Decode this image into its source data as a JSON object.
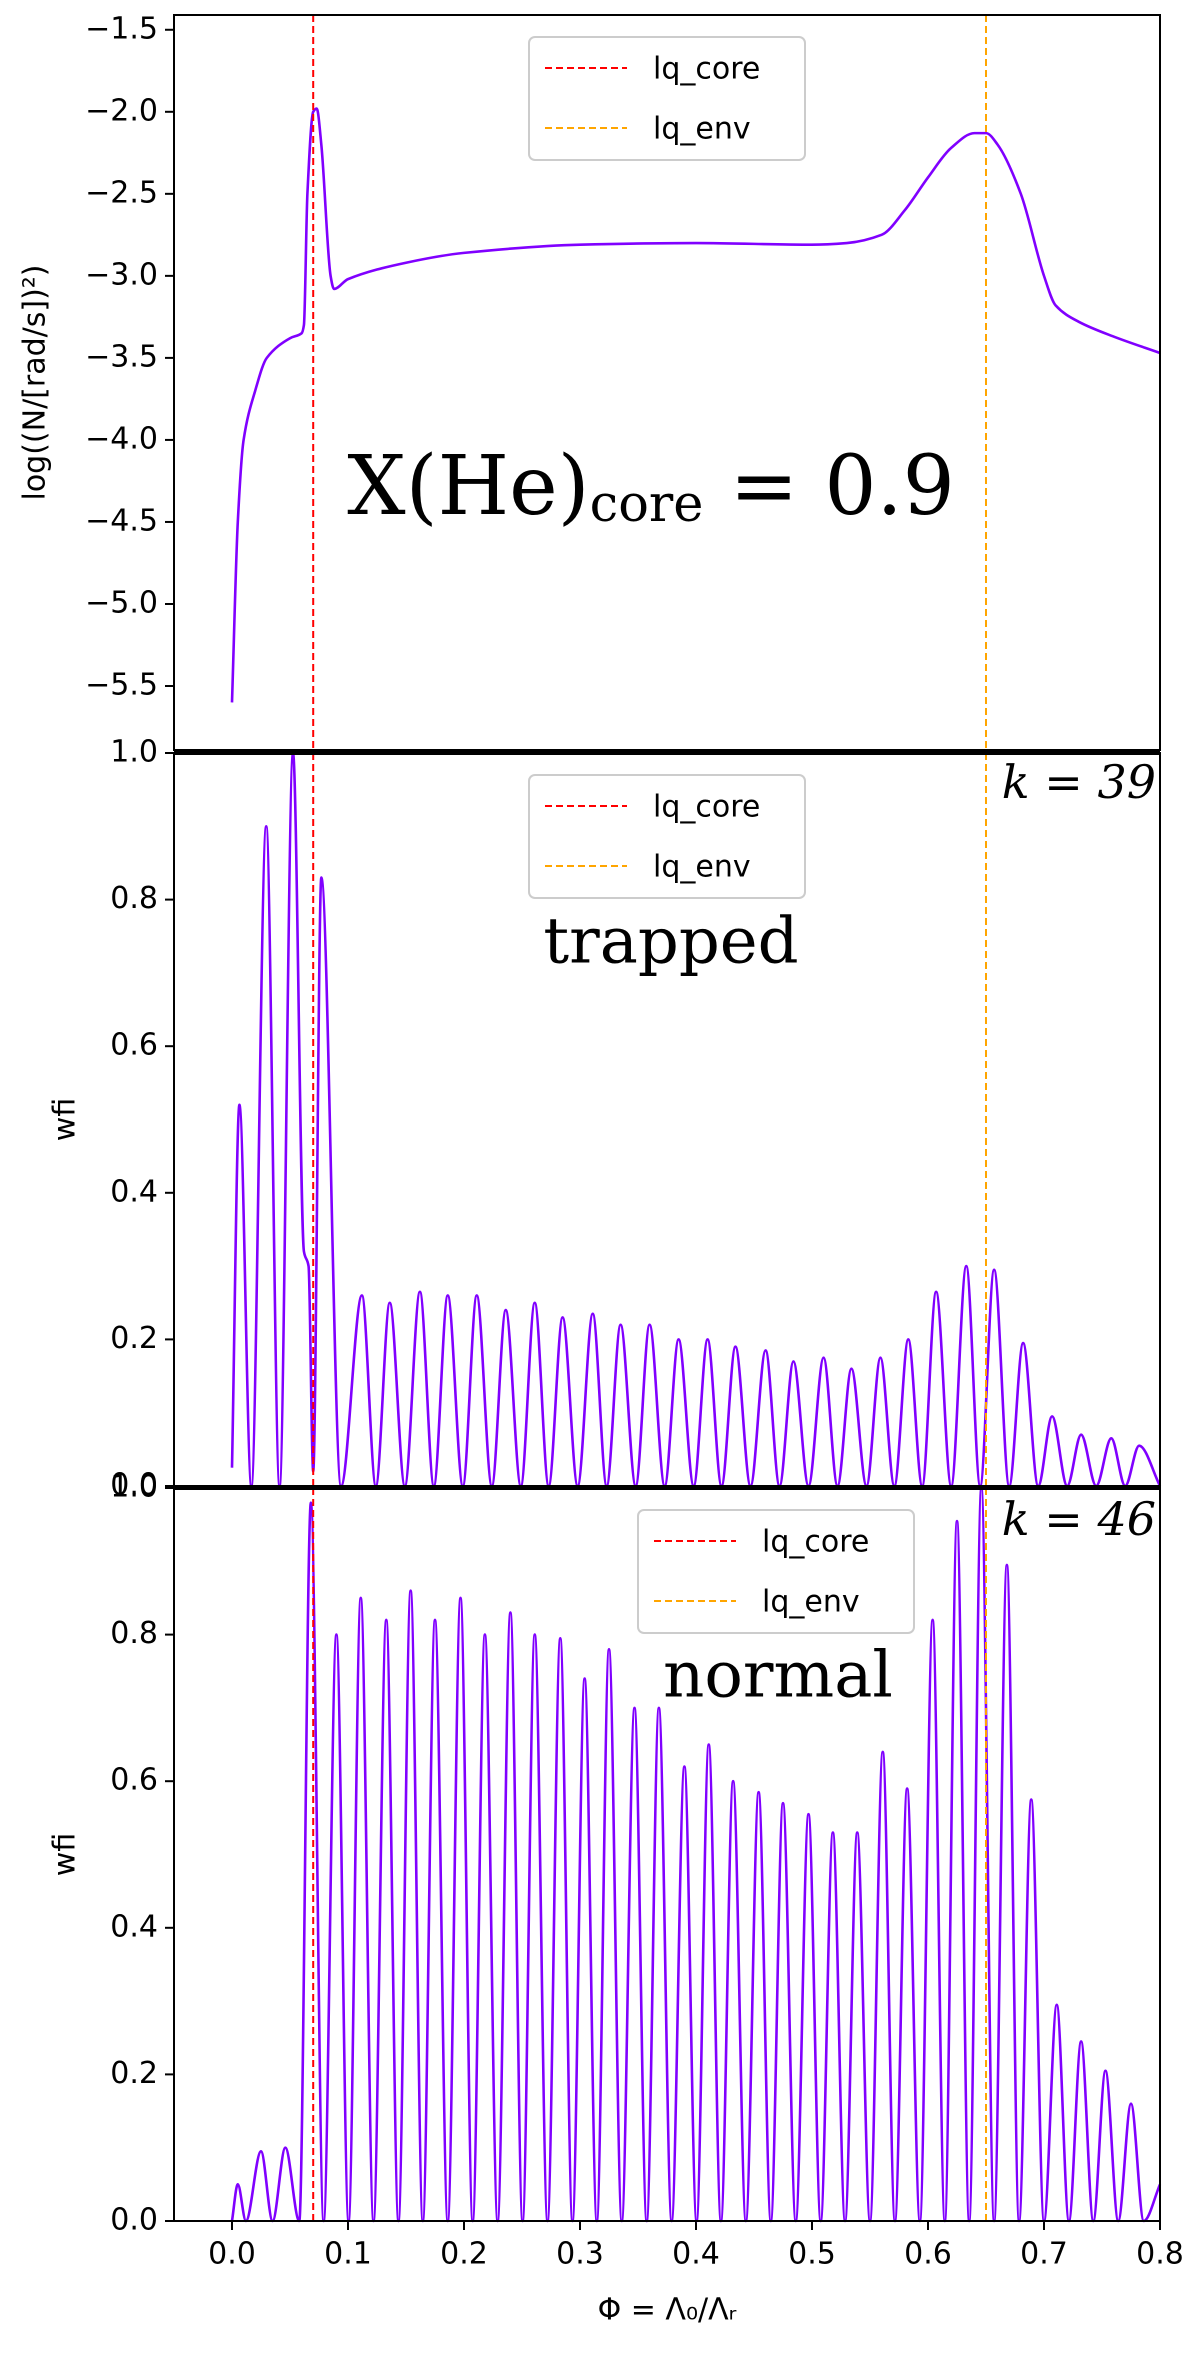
{
  "chart_data": [
    {
      "type": "line",
      "ylabel": "log((N/[rad/s])²)",
      "xlim": [
        -0.05,
        0.8
      ],
      "ylim": [
        -5.89,
        -1.41
      ],
      "yticks": [
        {
          "value": -5.5,
          "label": "−5.5"
        },
        {
          "value": -5.0,
          "label": "−5.0"
        },
        {
          "value": -4.5,
          "label": "−4.5"
        },
        {
          "value": -4.0,
          "label": "−4.0"
        },
        {
          "value": -3.5,
          "label": "−3.5"
        },
        {
          "value": -3.0,
          "label": "−3.0"
        },
        {
          "value": -2.5,
          "label": "−2.5"
        },
        {
          "value": -2.0,
          "label": "−2.0"
        },
        {
          "value": -1.5,
          "label": "−1.5"
        }
      ],
      "color": "#8000ff",
      "x": [
        0,
        0.005,
        0.01,
        0.02,
        0.03,
        0.05,
        0.06,
        0.062,
        0.065,
        0.07,
        0.073,
        0.077,
        0.085,
        0.088,
        0.1,
        0.15,
        0.2,
        0.3,
        0.4,
        0.5,
        0.53,
        0.56,
        0.58,
        0.6,
        0.62,
        0.64,
        0.65,
        0.66,
        0.68,
        0.7,
        0.71,
        0.73,
        0.76,
        0.8
      ],
      "values": [
        -5.6,
        -4.5,
        -4.0,
        -3.7,
        -3.5,
        -3.38,
        -3.35,
        -3.3,
        -2.5,
        -2.0,
        -1.98,
        -2.2,
        -3.0,
        -3.08,
        -3.02,
        -2.92,
        -2.86,
        -2.81,
        -2.8,
        -2.81,
        -2.8,
        -2.75,
        -2.6,
        -2.4,
        -2.22,
        -2.13,
        -2.13,
        -2.2,
        -2.5,
        -3.0,
        -3.18,
        -3.28,
        -3.37,
        -3.47
      ],
      "vlines": [
        {
          "name": "lq_core",
          "x": 0.07,
          "color": "#ff0000"
        },
        {
          "name": "lq_env",
          "x": 0.65,
          "color": "#ffa500"
        }
      ],
      "legend": "upper center",
      "annotations": [
        [
          "X(He)",
          "core",
          " = 0.9"
        ]
      ]
    },
    {
      "type": "line",
      "ylabel": "wfi",
      "xlim": [
        -0.05,
        0.8
      ],
      "ylim": [
        0,
        1.0
      ],
      "yticks": [
        {
          "value": 0,
          "label": "0.0"
        },
        0.2,
        0.4,
        0.6,
        0.8,
        {
          "value": 1.0,
          "label": "1.0"
        }
      ],
      "color": "#8000ff",
      "x": [
        0,
        0.0064,
        0.0167,
        0.0295,
        0.041,
        0.0526,
        0.062,
        0.066,
        0.07,
        0.077,
        0.094,
        0.112,
        0.124,
        0.136,
        0.149,
        0.162,
        0.174,
        0.186,
        0.199,
        0.211,
        0.224,
        0.236,
        0.249,
        0.261,
        0.273,
        0.285,
        0.298,
        0.311,
        0.323,
        0.335,
        0.348,
        0.36,
        0.373,
        0.385,
        0.398,
        0.41,
        0.422,
        0.434,
        0.447,
        0.46,
        0.472,
        0.484,
        0.497,
        0.51,
        0.522,
        0.534,
        0.547,
        0.559,
        0.571,
        0.583,
        0.595,
        0.607,
        0.62,
        0.633,
        0.645,
        0.657,
        0.67,
        0.682,
        0.695,
        0.707,
        0.72,
        0.732,
        0.745,
        0.758,
        0.77,
        0.782,
        0.8
      ],
      "values": [
        0.025,
        0.52,
        0,
        0.9,
        0,
        1.0,
        0.32,
        0.3,
        0.02,
        0.83,
        0,
        0.26,
        0,
        0.25,
        0,
        0.265,
        0,
        0.26,
        0,
        0.26,
        0,
        0.24,
        0,
        0.25,
        0,
        0.23,
        0,
        0.235,
        0,
        0.22,
        0,
        0.22,
        0,
        0.2,
        0,
        0.2,
        0,
        0.19,
        0,
        0.185,
        0,
        0.17,
        0,
        0.175,
        0,
        0.16,
        0,
        0.175,
        0,
        0.2,
        0,
        0.265,
        0,
        0.3,
        0,
        0.295,
        0,
        0.195,
        0,
        0.095,
        0,
        0.07,
        0,
        0.065,
        0,
        0.055,
        0
      ],
      "vlines": [
        {
          "name": "lq_core",
          "x": 0.07,
          "color": "#ff0000"
        },
        {
          "name": "lq_env",
          "x": 0.65,
          "color": "#ffa500"
        }
      ],
      "legend": "upper center",
      "annotations": [
        "trapped",
        "k = 39"
      ]
    },
    {
      "type": "line",
      "ylabel": "wfi",
      "xlabel": "Φ = Λ₀/Λᵣ",
      "xlim": [
        -0.05,
        0.8
      ],
      "ylim": [
        0,
        1.0
      ],
      "xticks": [
        {
          "value": 0,
          "label": "0.0"
        },
        0.1,
        0.2,
        0.3,
        0.4,
        0.5,
        0.6,
        0.7,
        0.8
      ],
      "yticks": [
        {
          "value": 0,
          "label": "0.0"
        },
        0.2,
        0.4,
        0.6,
        0.8,
        {
          "value": 1.0,
          "label": "1.0"
        }
      ],
      "color": "#8000ff",
      "x": [
        0,
        0.005,
        0.012,
        0.025,
        0.035,
        0.046,
        0.058,
        0.068,
        0.079,
        0.09,
        0.1005,
        0.111,
        0.122,
        0.133,
        0.1435,
        0.154,
        0.1645,
        0.175,
        0.186,
        0.197,
        0.2075,
        0.218,
        0.229,
        0.24,
        0.2505,
        0.261,
        0.272,
        0.283,
        0.2935,
        0.304,
        0.3145,
        0.325,
        0.336,
        0.347,
        0.3575,
        0.368,
        0.379,
        0.39,
        0.4005,
        0.411,
        0.4215,
        0.432,
        0.443,
        0.454,
        0.4645,
        0.475,
        0.486,
        0.497,
        0.5075,
        0.518,
        0.5285,
        0.539,
        0.55,
        0.561,
        0.5715,
        0.582,
        0.593,
        0.604,
        0.6145,
        0.625,
        0.6355,
        0.646,
        0.657,
        0.668,
        0.6785,
        0.689,
        0.7,
        0.711,
        0.7215,
        0.732,
        0.7425,
        0.753,
        0.764,
        0.775,
        0.786,
        0.8
      ],
      "values": [
        0,
        0.05,
        0,
        0.095,
        0,
        0.1,
        0,
        0.98,
        0,
        0.8,
        0,
        0.85,
        0,
        0.82,
        0,
        0.86,
        0,
        0.82,
        0,
        0.85,
        0,
        0.8,
        0,
        0.83,
        0,
        0.8,
        0,
        0.795,
        0,
        0.74,
        0,
        0.78,
        0,
        0.7,
        0,
        0.7,
        0,
        0.62,
        0,
        0.65,
        0,
        0.6,
        0,
        0.585,
        0,
        0.57,
        0,
        0.555,
        0,
        0.53,
        0,
        0.53,
        0,
        0.64,
        0,
        0.59,
        0,
        0.82,
        0,
        0.955,
        0,
        1.0,
        0,
        0.895,
        0,
        0.575,
        0,
        0.295,
        0,
        0.245,
        0,
        0.205,
        0,
        0.16,
        0,
        0.05
      ],
      "vlines": [
        {
          "name": "lq_core",
          "x": 0.07,
          "color": "#ff0000"
        },
        {
          "name": "lq_env",
          "x": 0.65,
          "color": "#ffa500"
        }
      ],
      "legend": "upper center",
      "annotations": [
        "normal",
        "k = 46"
      ]
    }
  ]
}
